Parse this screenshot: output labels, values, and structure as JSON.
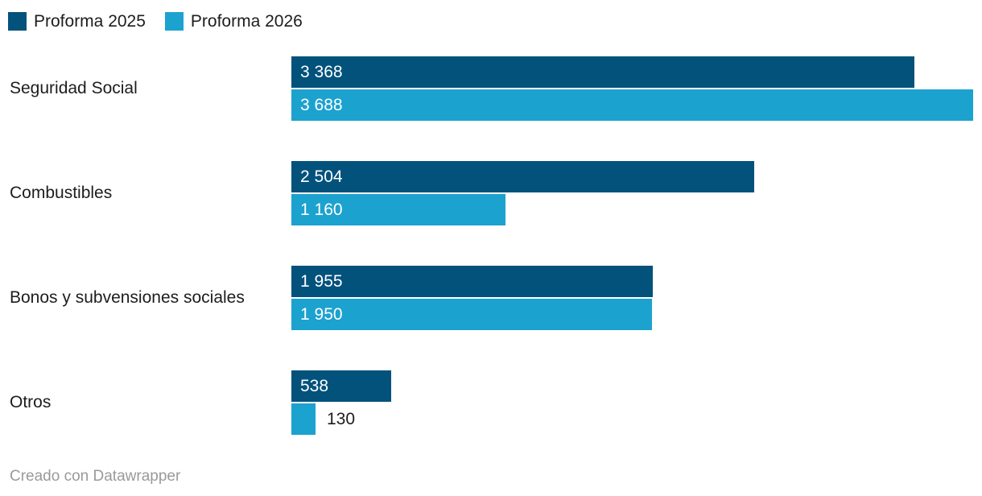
{
  "chart_data": {
    "type": "bar",
    "orientation": "horizontal",
    "title": "",
    "categories": [
      "Seguridad Social",
      "Combustibles",
      "Bonos y subvensiones sociales",
      "Otros"
    ],
    "series": [
      {
        "name": "Proforma 2025",
        "color": "#02527c",
        "values": [
          3368,
          2504,
          1955,
          538
        ],
        "value_labels": [
          "3 368",
          "2 504",
          "1 955",
          "538"
        ]
      },
      {
        "name": "Proforma 2026",
        "color": "#1ca2cf",
        "values": [
          3688,
          1160,
          1950,
          130
        ],
        "value_labels": [
          "3 688",
          "1 160",
          "1 950",
          "130"
        ]
      }
    ],
    "xlim": [
      0,
      3688
    ],
    "legend_position": "top",
    "grid": false,
    "value_label_color_inside": "#ffffff",
    "value_label_color_outside": "#1d1d1d"
  },
  "footer": {
    "attribution": "Creado con Datawrapper"
  },
  "colors": {
    "background": "#ffffff",
    "text": "#1d1d1d",
    "attribution": "#9a9a9a"
  }
}
